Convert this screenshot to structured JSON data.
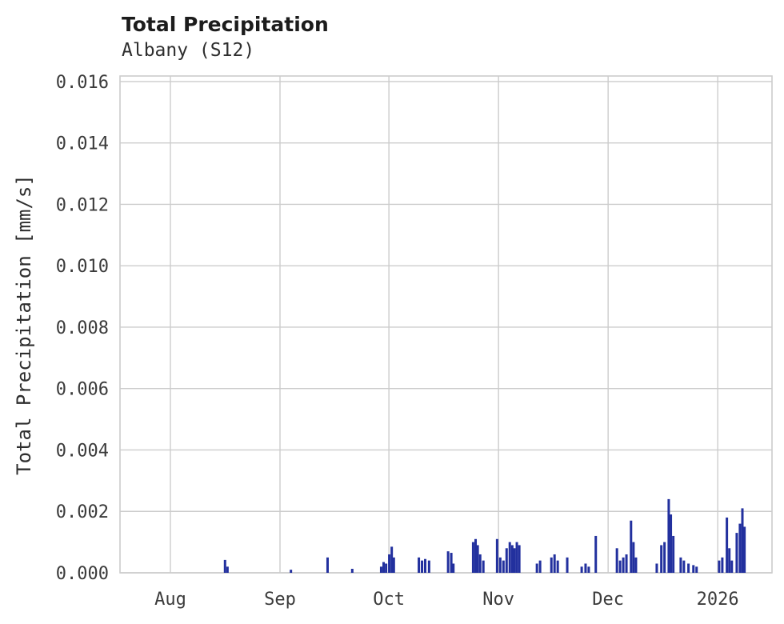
{
  "header": {
    "title": "Total Precipitation",
    "subtitle": "Albany (S12)"
  },
  "chart_data": {
    "type": "bar",
    "title": "Total Precipitation",
    "subtitle": "Albany (S12)",
    "xlabel": "",
    "ylabel": "Total Precipitation [mm/s]",
    "ylim": [
      0,
      0.01618
    ],
    "x_domain": [
      0,
      185
    ],
    "grid": true,
    "legend": "none",
    "bar_color": "#22309e",
    "grid_color": "#cccccc",
    "yticks": [
      {
        "label": "0.000",
        "value": 0.0
      },
      {
        "label": "0.002",
        "value": 0.002
      },
      {
        "label": "0.004",
        "value": 0.004
      },
      {
        "label": "0.006",
        "value": 0.006
      },
      {
        "label": "0.008",
        "value": 0.008
      },
      {
        "label": "0.010",
        "value": 0.01
      },
      {
        "label": "0.012",
        "value": 0.012
      },
      {
        "label": "0.014",
        "value": 0.014
      },
      {
        "label": "0.016",
        "value": 0.016
      }
    ],
    "xticks": [
      {
        "label": "Aug",
        "day": 14.3
      },
      {
        "label": "Sep",
        "day": 45.4
      },
      {
        "label": "Oct",
        "day": 76.3
      },
      {
        "label": "Nov",
        "day": 107.4
      },
      {
        "label": "Dec",
        "day": 138.5
      },
      {
        "label": "2026",
        "day": 169.6
      }
    ],
    "series": [
      {
        "name": "Total Precipitation",
        "points": [
          [
            29.8,
            0.00042
          ],
          [
            30.5,
            0.0002
          ],
          [
            48.5,
            0.0001
          ],
          [
            58.9,
            0.0005
          ],
          [
            65.9,
            0.00013
          ],
          [
            74.1,
            0.0002
          ],
          [
            74.8,
            0.00035
          ],
          [
            75.5,
            0.0003
          ],
          [
            76.4,
            0.0006
          ],
          [
            77.1,
            0.00085
          ],
          [
            77.7,
            0.0005
          ],
          [
            84.8,
            0.0005
          ],
          [
            85.7,
            0.0004
          ],
          [
            86.6,
            0.00045
          ],
          [
            87.7,
            0.0004
          ],
          [
            93.1,
            0.0007
          ],
          [
            94.0,
            0.00065
          ],
          [
            94.6,
            0.0003
          ],
          [
            100.2,
            0.001
          ],
          [
            100.9,
            0.0011
          ],
          [
            101.5,
            0.0009
          ],
          [
            102.2,
            0.0006
          ],
          [
            103.1,
            0.0004
          ],
          [
            107.0,
            0.0011
          ],
          [
            107.9,
            0.0005
          ],
          [
            108.8,
            0.0004
          ],
          [
            109.7,
            0.0008
          ],
          [
            110.6,
            0.001
          ],
          [
            111.3,
            0.0009
          ],
          [
            111.9,
            0.0008
          ],
          [
            112.6,
            0.001
          ],
          [
            113.3,
            0.0009
          ],
          [
            118.3,
            0.0003
          ],
          [
            119.2,
            0.0004
          ],
          [
            122.4,
            0.0005
          ],
          [
            123.3,
            0.0006
          ],
          [
            124.2,
            0.0004
          ],
          [
            126.9,
            0.0005
          ],
          [
            131.0,
            0.0002
          ],
          [
            132.1,
            0.0003
          ],
          [
            133.0,
            0.0002
          ],
          [
            135.0,
            0.0012
          ],
          [
            141.0,
            0.0008
          ],
          [
            141.9,
            0.0004
          ],
          [
            142.8,
            0.0005
          ],
          [
            143.7,
            0.0006
          ],
          [
            145.0,
            0.0017
          ],
          [
            145.7,
            0.001
          ],
          [
            146.4,
            0.0005
          ],
          [
            152.3,
            0.0003
          ],
          [
            153.6,
            0.0009
          ],
          [
            154.5,
            0.001
          ],
          [
            155.7,
            0.0024
          ],
          [
            156.3,
            0.0019
          ],
          [
            157.0,
            0.0012
          ],
          [
            159.1,
            0.0005
          ],
          [
            160.0,
            0.0004
          ],
          [
            161.3,
            0.0003
          ],
          [
            162.7,
            0.00025
          ],
          [
            163.6,
            0.0002
          ],
          [
            170.0,
            0.0004
          ],
          [
            170.9,
            0.0005
          ],
          [
            172.2,
            0.0018
          ],
          [
            172.9,
            0.0008
          ],
          [
            173.6,
            0.0004
          ],
          [
            175.0,
            0.0013
          ],
          [
            175.9,
            0.0016
          ],
          [
            176.6,
            0.0021
          ],
          [
            177.2,
            0.0015
          ]
        ]
      }
    ]
  }
}
